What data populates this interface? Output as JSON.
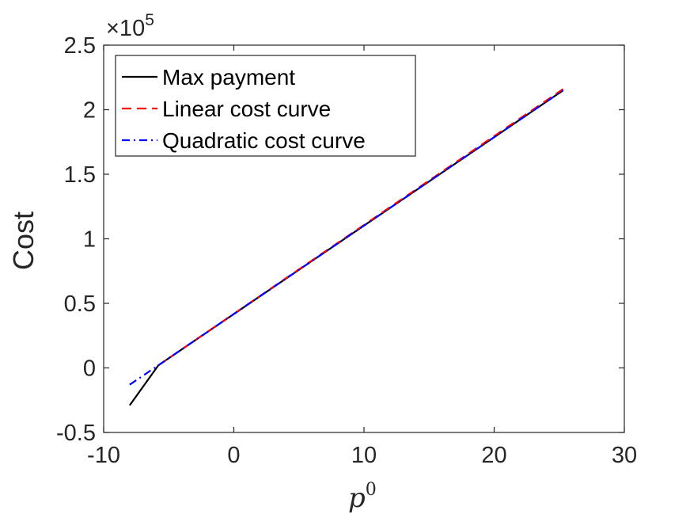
{
  "chart_data": {
    "type": "line",
    "title": "",
    "ylabel": "Cost",
    "xlabel": {
      "base": "p",
      "superscript": "0"
    },
    "xlim": [
      -10,
      30
    ],
    "ylim": [
      -0.5,
      2.5
    ],
    "y_exponent_label": {
      "prefix": "×10",
      "power": "5"
    },
    "xticks": [
      -10,
      0,
      10,
      20,
      30
    ],
    "xtick_labels": [
      "-10",
      "0",
      "10",
      "20",
      "30"
    ],
    "yticks": [
      -0.5,
      0,
      0.5,
      1,
      1.5,
      2,
      2.5
    ],
    "ytick_labels": [
      "-0.5",
      "0",
      "0.5",
      "1",
      "1.5",
      "2",
      "2.5"
    ],
    "grid": false,
    "legend_position": "top-left",
    "series": [
      {
        "name": "Max payment",
        "color": "#000000",
        "dash": "solid",
        "x": [
          -8,
          -5.8,
          25.3
        ],
        "y": [
          -0.29,
          0.02,
          2.15
        ]
      },
      {
        "name": "Linear cost curve",
        "color": "#ff0000",
        "dash": "dashed",
        "x": [
          -5.8,
          25.3
        ],
        "y": [
          0.02,
          2.16
        ]
      },
      {
        "name": "Quadratic cost curve",
        "color": "#0000ff",
        "dash": "dashdot",
        "x": [
          -8,
          -5.8,
          25.3
        ],
        "y": [
          -0.13,
          0.02,
          2.15
        ]
      }
    ]
  }
}
